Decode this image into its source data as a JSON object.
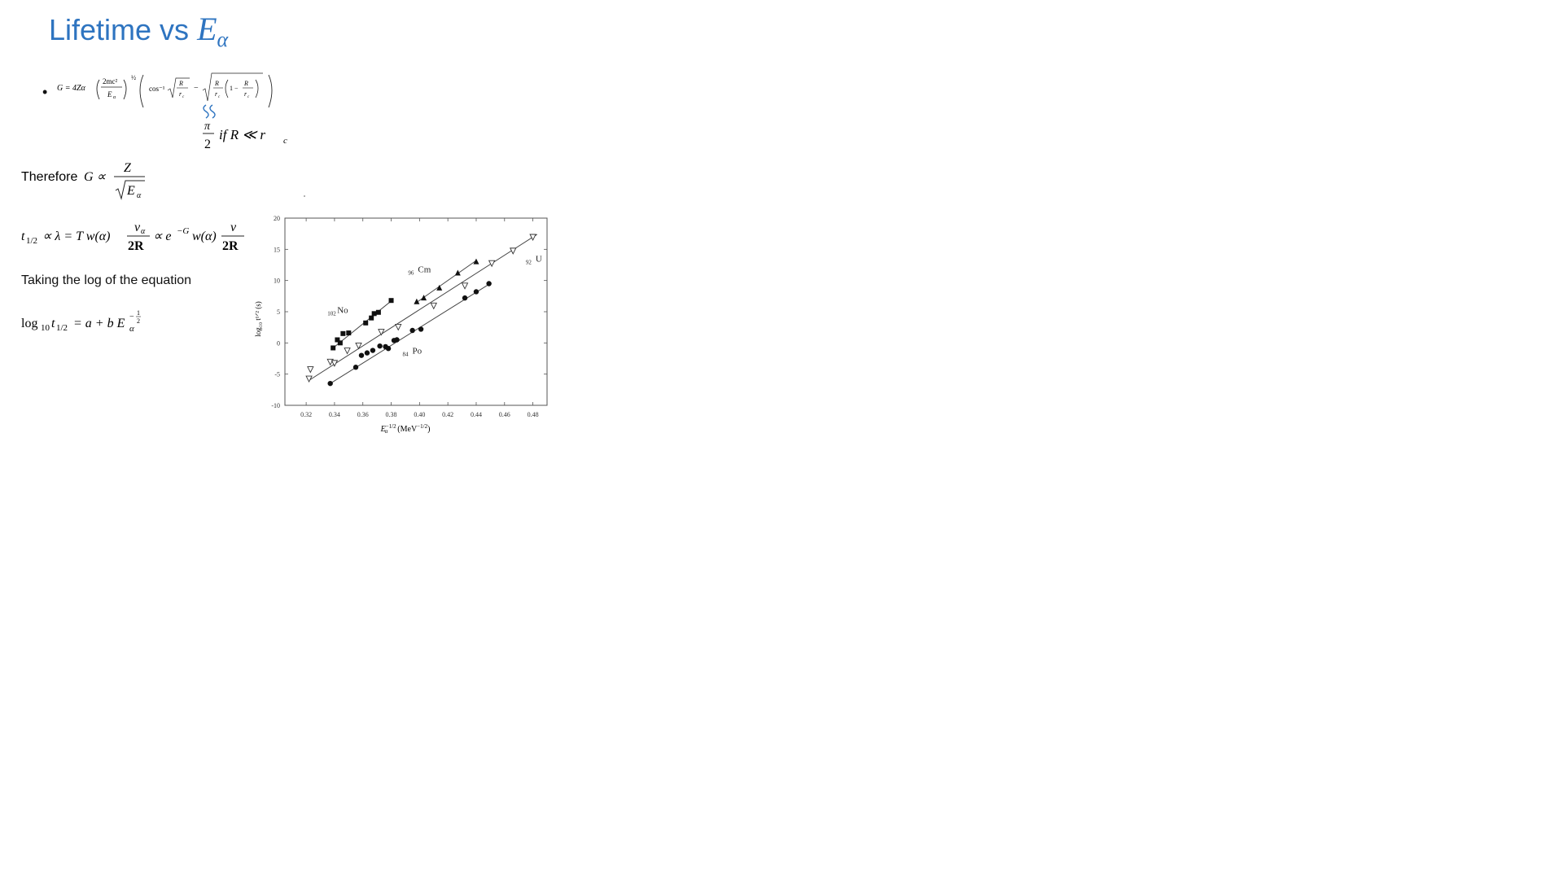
{
  "title": {
    "text": "Lifetime vs ",
    "var": "E",
    "sub": "α"
  },
  "gamow": {
    "lhs": "G = 4Zα",
    "frac_num": "2mc²",
    "frac_den": "E",
    "frac_den_sub": "α",
    "exp": "½",
    "cos": "cos⁻¹",
    "r1_num": "R",
    "r1_den": "r",
    "r1_den_sub": "c",
    "minus": "−",
    "r2_num": "R",
    "r2_den": "r",
    "r2_den_sub": "c",
    "one_minus": "1 −",
    "r3_num": "R",
    "r3_den": "r",
    "r3_den_sub": "c"
  },
  "approx": {
    "num": "π",
    "den": "2",
    "cond": "if R ≪ r",
    "cond_sub": "c"
  },
  "therefore": {
    "text": "Therefore",
    "lhs": "G ∝",
    "num": "Z",
    "den": "E",
    "den_sub": "α"
  },
  "thalf": {
    "lhs": "t",
    "lhs_sub": "1/2",
    "mid": "∝ λ = T w(α)",
    "f1_num": "v",
    "f1_num_sub": "α",
    "f1_den": "2R",
    "mid2": "∝ e",
    "mid2_sup": "−G",
    "mid3": "w(α)",
    "f2_num": "v",
    "f2_den": "2R"
  },
  "log_text": "Taking the log of the equation",
  "log_eq": {
    "log": "log",
    "log_sub": "10",
    "t": "t",
    "t_sub": "1/2",
    "rest": "= a + b E",
    "e_sub": "α",
    "exp_num": "1",
    "exp_den": "2",
    "exp_minus": "−"
  },
  "chart_data": {
    "type": "scatter",
    "xlabel": "E",
    "xlabel_sup": "−1/2",
    "xlabel_sub": "α",
    "xlabel_unit": "(MeV",
    "xlabel_unit_sup": "−1/2",
    "xlabel_unit_end": ")",
    "ylabel": "log₁₀ t¹ᐟ² (s)",
    "xlim": [
      0.305,
      0.49
    ],
    "ylim": [
      -10,
      20
    ],
    "xticks": [
      "0.32",
      "0.34",
      "0.36",
      "0.38",
      "0.40",
      "0.42",
      "0.44",
      "0.46",
      "0.48"
    ],
    "yticks": [
      "20",
      "15",
      "10",
      "5",
      "0",
      "-5",
      "-10"
    ],
    "xtick_values": [
      0.32,
      0.34,
      0.36,
      0.38,
      0.4,
      0.42,
      0.44,
      0.46,
      0.48
    ],
    "ytick_values": [
      20,
      15,
      10,
      5,
      0,
      -5,
      -10
    ],
    "series": [
      {
        "name": "No",
        "label_z": "102",
        "marker": "square",
        "points": [
          [
            0.339,
            -0.8
          ],
          [
            0.342,
            0.5
          ],
          [
            0.344,
            0.0
          ],
          [
            0.346,
            1.5
          ],
          [
            0.35,
            1.6
          ],
          [
            0.362,
            3.2
          ],
          [
            0.366,
            4.0
          ],
          [
            0.368,
            4.7
          ],
          [
            0.371,
            4.9
          ],
          [
            0.38,
            6.8
          ]
        ],
        "fit": [
          [
            0.339,
            -0.8
          ],
          [
            0.381,
            6.9
          ]
        ]
      },
      {
        "name": "Cm",
        "label_z": "96",
        "marker": "triangle",
        "points": [
          [
            0.398,
            6.6
          ],
          [
            0.403,
            7.2
          ],
          [
            0.414,
            8.8
          ],
          [
            0.427,
            11.2
          ],
          [
            0.44,
            13.0
          ]
        ],
        "fit": [
          [
            0.398,
            6.5
          ],
          [
            0.44,
            13.2
          ]
        ]
      },
      {
        "name": "U",
        "label_z": "92",
        "marker": "triangle-down",
        "points": [
          [
            0.322,
            -5.7
          ],
          [
            0.323,
            -4.2
          ],
          [
            0.337,
            -3.0
          ],
          [
            0.34,
            -3.2
          ],
          [
            0.349,
            -1.2
          ],
          [
            0.357,
            -0.4
          ],
          [
            0.373,
            1.8
          ],
          [
            0.385,
            2.6
          ],
          [
            0.41,
            6.0
          ],
          [
            0.432,
            9.2
          ],
          [
            0.451,
            12.8
          ],
          [
            0.466,
            14.8
          ],
          [
            0.48,
            17.0
          ]
        ],
        "fit": [
          [
            0.322,
            -6.0
          ],
          [
            0.483,
            17.4
          ]
        ]
      },
      {
        "name": "Po",
        "label_z": "84",
        "marker": "circle",
        "points": [
          [
            0.337,
            -6.5
          ],
          [
            0.355,
            -3.9
          ],
          [
            0.359,
            -2.0
          ],
          [
            0.363,
            -1.6
          ],
          [
            0.367,
            -1.2
          ],
          [
            0.372,
            -0.5
          ],
          [
            0.376,
            -0.6
          ],
          [
            0.378,
            -0.9
          ],
          [
            0.382,
            0.4
          ],
          [
            0.384,
            0.5
          ],
          [
            0.395,
            2.0
          ],
          [
            0.401,
            2.2
          ],
          [
            0.432,
            7.2
          ],
          [
            0.44,
            8.2
          ],
          [
            0.449,
            9.5
          ]
        ],
        "fit": [
          [
            0.337,
            -6.5
          ],
          [
            0.449,
            9.4
          ]
        ]
      }
    ]
  }
}
